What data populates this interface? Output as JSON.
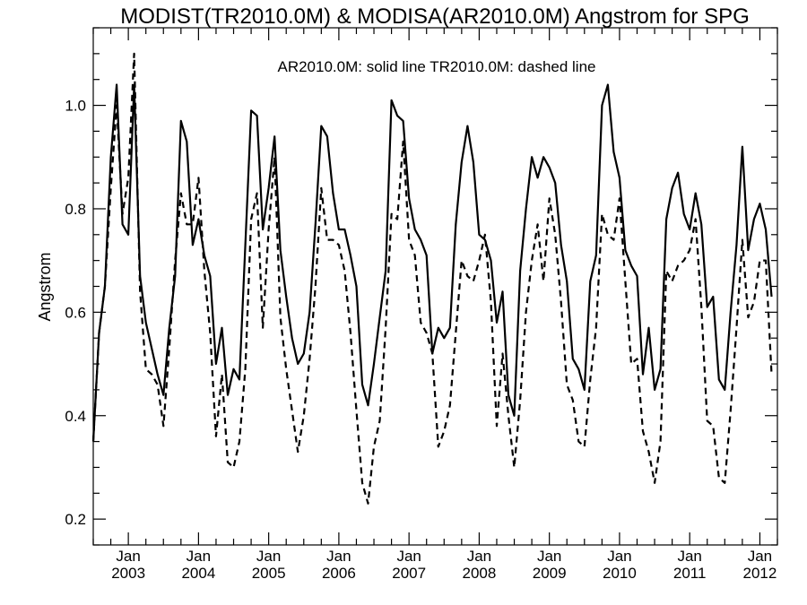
{
  "chart_data": {
    "type": "line",
    "title": "MODIST(TR2010.0M) & MODISA(AR2010.0M)  Angstrom for SPG",
    "annotation": "AR2010.0M: solid line   TR2010.0M: dashed line",
    "ylabel": "Angstrom",
    "xlabel": "",
    "xlim": [
      "2002-07",
      "2012-04"
    ],
    "ylim": [
      0.15,
      1.15
    ],
    "y_major_ticks": [
      0.2,
      0.4,
      0.6,
      0.8,
      1.0
    ],
    "y_tick_labels": [
      "0.2",
      "0.4",
      "0.6",
      "0.8",
      "1.0"
    ],
    "x_tick_labels": [
      {
        "month": "Jan",
        "year": "2003"
      },
      {
        "month": "Jan",
        "year": "2004"
      },
      {
        "month": "Jan",
        "year": "2005"
      },
      {
        "month": "Jan",
        "year": "2006"
      },
      {
        "month": "Jan",
        "year": "2007"
      },
      {
        "month": "Jan",
        "year": "2008"
      },
      {
        "month": "Jan",
        "year": "2009"
      },
      {
        "month": "Jan",
        "year": "2010"
      },
      {
        "month": "Jan",
        "year": "2011"
      },
      {
        "month": "Jan",
        "year": "2012"
      }
    ],
    "x_start": "2002-07",
    "series": [
      {
        "style": "solid",
        "values": [
          0.35,
          0.56,
          0.65,
          0.9,
          1.04,
          0.77,
          0.75,
          1.04,
          0.67,
          0.58,
          0.53,
          0.48,
          0.44,
          0.57,
          0.67,
          0.97,
          0.93,
          0.73,
          0.78,
          0.71,
          0.67,
          0.5,
          0.57,
          0.44,
          0.49,
          0.47,
          0.73,
          0.99,
          0.98,
          0.76,
          0.84,
          0.94,
          0.72,
          0.63,
          0.55,
          0.5,
          0.52,
          0.6,
          0.77,
          0.96,
          0.94,
          0.83,
          0.76,
          0.76,
          0.71,
          0.65,
          0.46,
          0.42,
          0.5,
          0.59,
          0.68,
          1.01,
          0.98,
          0.97,
          0.82,
          0.76,
          0.74,
          0.71,
          0.52,
          0.57,
          0.55,
          0.57,
          0.77,
          0.89,
          0.96,
          0.89,
          0.75,
          0.74,
          0.7,
          0.58,
          0.64,
          0.44,
          0.4,
          0.68,
          0.8,
          0.9,
          0.86,
          0.9,
          0.88,
          0.85,
          0.73,
          0.66,
          0.51,
          0.49,
          0.45,
          0.66,
          0.71,
          1.0,
          1.04,
          0.91,
          0.86,
          0.72,
          0.69,
          0.67,
          0.48,
          0.57,
          0.45,
          0.49,
          0.78,
          0.84,
          0.87,
          0.79,
          0.76,
          0.83,
          0.77,
          0.61,
          0.63,
          0.47,
          0.45,
          0.6,
          0.73,
          0.92,
          0.72,
          0.78,
          0.81,
          0.76,
          0.63
        ]
      },
      {
        "style": "dashed",
        "values": [
          0.35,
          0.56,
          0.65,
          0.84,
          1.0,
          0.79,
          0.86,
          1.1,
          0.64,
          0.49,
          0.48,
          0.46,
          0.38,
          0.53,
          0.7,
          0.83,
          0.77,
          0.77,
          0.86,
          0.68,
          0.56,
          0.36,
          0.48,
          0.31,
          0.3,
          0.35,
          0.49,
          0.78,
          0.83,
          0.57,
          0.76,
          0.9,
          0.59,
          0.49,
          0.41,
          0.33,
          0.4,
          0.51,
          0.65,
          0.84,
          0.74,
          0.74,
          0.73,
          0.68,
          0.56,
          0.41,
          0.27,
          0.23,
          0.34,
          0.39,
          0.57,
          0.79,
          0.78,
          0.93,
          0.74,
          0.71,
          0.58,
          0.56,
          0.52,
          0.34,
          0.37,
          0.42,
          0.56,
          0.7,
          0.67,
          0.66,
          0.7,
          0.75,
          0.62,
          0.38,
          0.52,
          0.4,
          0.3,
          0.43,
          0.6,
          0.7,
          0.77,
          0.66,
          0.82,
          0.75,
          0.62,
          0.46,
          0.43,
          0.35,
          0.34,
          0.47,
          0.57,
          0.79,
          0.75,
          0.74,
          0.82,
          0.66,
          0.5,
          0.51,
          0.37,
          0.33,
          0.27,
          0.35,
          0.68,
          0.66,
          0.69,
          0.7,
          0.72,
          0.78,
          0.61,
          0.39,
          0.38,
          0.28,
          0.27,
          0.41,
          0.57,
          0.74,
          0.59,
          0.62,
          0.7,
          0.7,
          0.48
        ]
      }
    ]
  }
}
